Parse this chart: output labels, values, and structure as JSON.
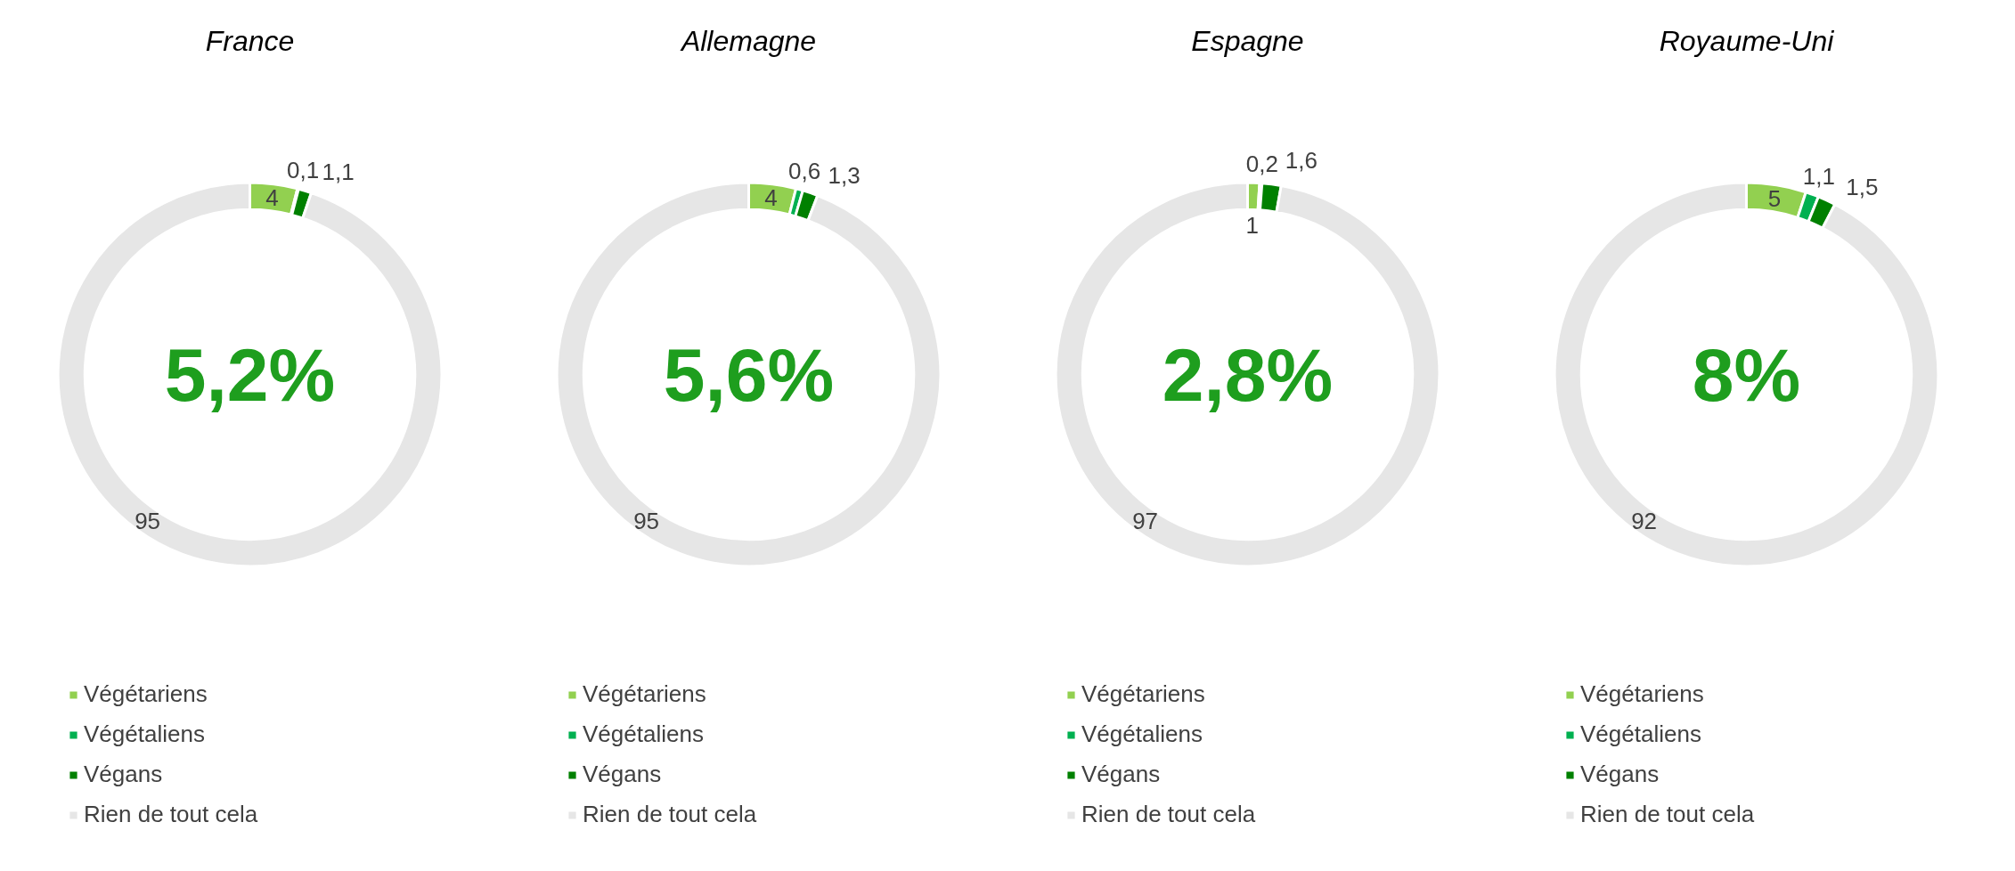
{
  "chart_data": [
    {
      "type": "donut",
      "title": "France",
      "categories": [
        "Végétariens",
        "Végétaliens",
        "Végans",
        "Rien de tout cela"
      ],
      "values": [
        4,
        0.1,
        1.1,
        95
      ],
      "colors": [
        "#92d050",
        "#00b050",
        "#008000",
        "#e6e6e6"
      ],
      "value_labels": [
        "4",
        "0,1",
        "1,1",
        "95"
      ],
      "annotations": [
        "5,2%"
      ],
      "legend": "bottom"
    },
    {
      "type": "donut",
      "title": "Allemagne",
      "categories": [
        "Végétariens",
        "Végétaliens",
        "Végans",
        "Rien de tout cela"
      ],
      "values": [
        4,
        0.6,
        1.3,
        95
      ],
      "colors": [
        "#92d050",
        "#00b050",
        "#008000",
        "#e6e6e6"
      ],
      "value_labels": [
        "4",
        "0,6",
        "1,3",
        "95"
      ],
      "annotations": [
        "5,6%"
      ],
      "legend": "bottom"
    },
    {
      "type": "donut",
      "title": "Espagne",
      "categories": [
        "Végétariens",
        "Végétaliens",
        "Végans",
        "Rien de tout cela"
      ],
      "values": [
        1,
        0.2,
        1.6,
        97
      ],
      "colors": [
        "#92d050",
        "#00b050",
        "#008000",
        "#e6e6e6"
      ],
      "value_labels": [
        "1",
        "0,2",
        "1,6",
        "97"
      ],
      "annotations": [
        "2,8%"
      ],
      "legend": "bottom"
    },
    {
      "type": "donut",
      "title": "Royaume-Uni",
      "categories": [
        "Végétariens",
        "Végétaliens",
        "Végans",
        "Rien de tout cela"
      ],
      "values": [
        5,
        1.1,
        1.5,
        92
      ],
      "colors": [
        "#92d050",
        "#00b050",
        "#008000",
        "#e6e6e6"
      ],
      "value_labels": [
        "5",
        "1,1",
        "1,5",
        "92"
      ],
      "annotations": [
        "8%"
      ],
      "legend": "bottom"
    }
  ]
}
